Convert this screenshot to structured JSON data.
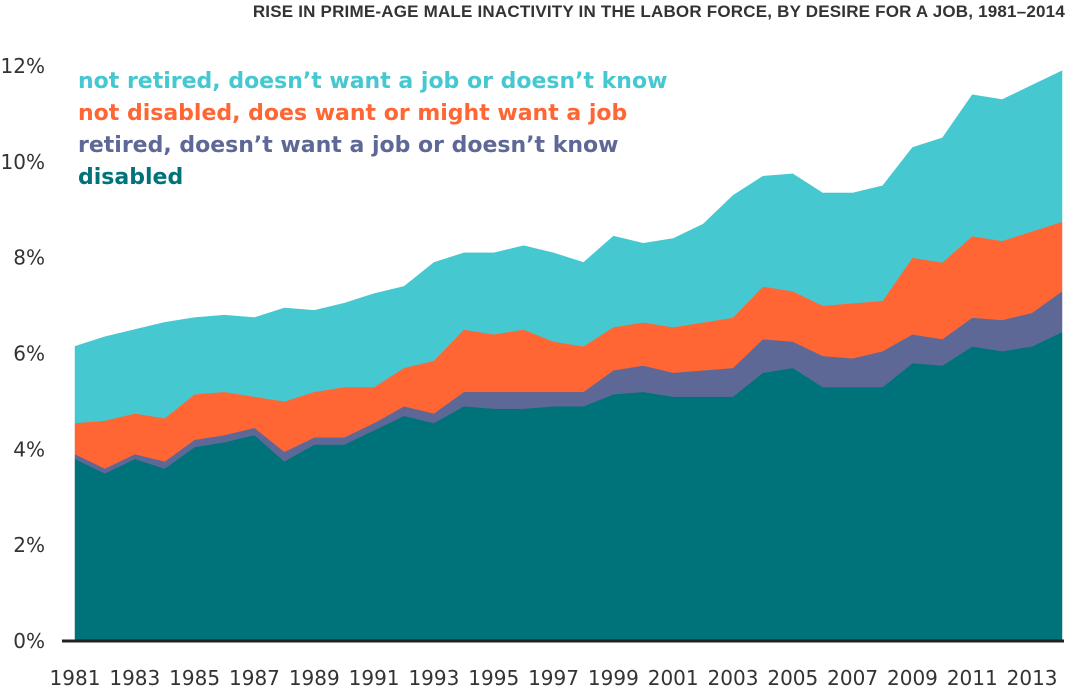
{
  "chart_data": {
    "type": "area",
    "stacked": true,
    "title": "RISE IN PRIME-AGE MALE INACTIVITY IN THE LABOR FORCE, BY DESIRE FOR A JOB, 1981–2014",
    "xlabel": "",
    "ylabel": "",
    "x": [
      1981,
      1982,
      1983,
      1984,
      1985,
      1986,
      1987,
      1988,
      1989,
      1990,
      1991,
      1992,
      1993,
      1994,
      1995,
      1996,
      1997,
      1998,
      1999,
      2000,
      2001,
      2002,
      2003,
      2004,
      2005,
      2006,
      2007,
      2008,
      2009,
      2010,
      2011,
      2012,
      2013,
      2014
    ],
    "x_tick_labels": [
      "1981",
      "1983",
      "1985",
      "1987",
      "1989",
      "1991",
      "1993",
      "1995",
      "1997",
      "1999",
      "2001",
      "2003",
      "2005",
      "2007",
      "2009",
      "2011",
      "2013"
    ],
    "y_tick_labels": [
      "0%",
      "2%",
      "4%",
      "6%",
      "8%",
      "10%",
      "12%"
    ],
    "ylim": [
      0,
      12
    ],
    "y_ticks": [
      0,
      2,
      4,
      6,
      8,
      10,
      12
    ],
    "grid": false,
    "legend_position": "top-left",
    "series": [
      {
        "name": "disabled",
        "color": "#00737a",
        "values": [
          3.8,
          3.5,
          3.8,
          3.6,
          4.05,
          4.15,
          4.3,
          3.75,
          4.1,
          4.1,
          4.4,
          4.7,
          4.55,
          4.9,
          4.85,
          4.85,
          4.9,
          4.9,
          5.15,
          5.2,
          5.1,
          5.1,
          5.1,
          5.6,
          5.7,
          5.3,
          5.3,
          5.3,
          5.8,
          5.75,
          6.15,
          6.05,
          6.15,
          6.45
        ]
      },
      {
        "name": "retired, doesn’t want a job or doesn’t know",
        "color": "#5e6896",
        "values": [
          0.1,
          0.1,
          0.1,
          0.15,
          0.15,
          0.15,
          0.15,
          0.2,
          0.15,
          0.15,
          0.15,
          0.2,
          0.2,
          0.3,
          0.35,
          0.35,
          0.3,
          0.3,
          0.5,
          0.55,
          0.5,
          0.55,
          0.6,
          0.7,
          0.55,
          0.65,
          0.6,
          0.75,
          0.6,
          0.55,
          0.6,
          0.65,
          0.7,
          0.85
        ]
      },
      {
        "name": "not disabled, does want or might want a job",
        "color": "#ff6633",
        "values": [
          0.65,
          1.0,
          0.85,
          0.9,
          0.95,
          0.9,
          0.65,
          1.05,
          0.95,
          1.05,
          0.75,
          0.8,
          1.1,
          1.3,
          1.2,
          1.3,
          1.05,
          0.95,
          0.9,
          0.9,
          0.95,
          1.0,
          1.05,
          1.1,
          1.05,
          1.05,
          1.15,
          1.05,
          1.6,
          1.6,
          1.7,
          1.65,
          1.7,
          1.45
        ]
      },
      {
        "name": "not retired, doesn’t want a job or doesn’t know",
        "color": "#45c8d0",
        "values": [
          1.6,
          1.75,
          1.75,
          2.0,
          1.6,
          1.6,
          1.65,
          1.95,
          1.7,
          1.75,
          1.95,
          1.7,
          2.05,
          1.6,
          1.7,
          1.75,
          1.85,
          1.75,
          1.9,
          1.65,
          1.85,
          2.05,
          2.55,
          2.3,
          2.45,
          2.35,
          2.3,
          2.4,
          2.3,
          2.6,
          2.95,
          2.95,
          3.05,
          3.15
        ]
      }
    ]
  }
}
